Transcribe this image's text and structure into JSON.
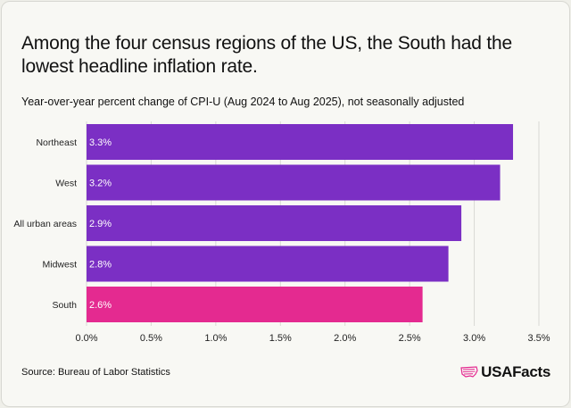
{
  "header": {
    "title": "Among the four census regions of the US, the South had the lowest headline inflation rate.",
    "subtitle": "Year-over-year percent change of CPI-U (Aug 2024 to Aug 2025), not seasonally adjusted"
  },
  "chart_data": {
    "type": "bar",
    "orientation": "horizontal",
    "categories": [
      "Northeast",
      "West",
      "All urban areas",
      "Midwest",
      "South"
    ],
    "values": [
      3.3,
      3.2,
      2.9,
      2.8,
      2.6
    ],
    "data_labels": [
      "3.3%",
      "3.2%",
      "2.9%",
      "2.8%",
      "2.6%"
    ],
    "xlim": [
      0,
      3.5
    ],
    "x_ticks": [
      0,
      0.5,
      1,
      1.5,
      2,
      2.5,
      3,
      3.5
    ],
    "x_tick_labels": [
      "0.0%",
      "0.5%",
      "1.0%",
      "1.5%",
      "2.0%",
      "2.5%",
      "3.0%",
      "3.5%"
    ],
    "grid": true,
    "colors": {
      "default": "#7b2fc4",
      "highlight": "#e42a90",
      "highlight_category": "South",
      "grid": "#d9d9d4"
    }
  },
  "footer": {
    "source": "Source: Bureau of Labor Statistics",
    "brand": "USAFacts",
    "brand_icon": "us-map-flag-icon",
    "brand_color": "#e42a90"
  }
}
